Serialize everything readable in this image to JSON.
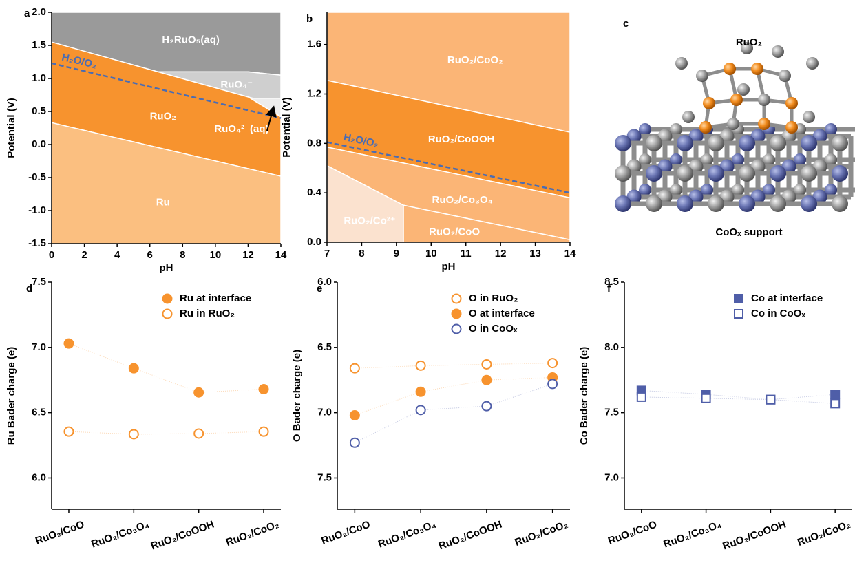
{
  "chart_data": [
    {
      "type": "pourbaix",
      "label": "a",
      "xlabel": "pH",
      "ylabel": "Potential (V)",
      "xlim": [
        0,
        14
      ],
      "ylim": [
        -1.5,
        2.0
      ],
      "xticks": [
        0,
        2,
        4,
        6,
        8,
        10,
        12,
        14
      ],
      "yticks": [
        -1.5,
        {
          "value": -1,
          "label": "-1.0"
        },
        -0.5,
        {
          "value": 0,
          "label": "0.0"
        },
        0.5,
        {
          "value": 1,
          "label": "1.0"
        },
        1.5,
        {
          "value": 2,
          "label": "2.0"
        }
      ],
      "regions": [
        {
          "name": "H₂RuO₅(aq)",
          "color": "#9a9a9a",
          "points": [
            [
              0,
              2.0
            ],
            [
              14,
              2.0
            ],
            [
              14,
              1.05
            ],
            [
              12,
              1.1
            ],
            [
              6.5,
              1.1
            ],
            [
              0,
              1.55
            ]
          ]
        },
        {
          "name": "RuO₄⁻",
          "color": "#cfcfcf",
          "points": [
            [
              6.5,
              1.1
            ],
            [
              12,
              1.1
            ],
            [
              14,
              1.05
            ],
            [
              14,
              0.7
            ],
            [
              12.3,
              0.7
            ]
          ]
        },
        {
          "name": "RuO₄²⁻(aq)",
          "color": "#ededed",
          "points": [
            [
              12.3,
              0.7
            ],
            [
              14,
              0.7
            ],
            [
              14,
              0.42
            ],
            [
              12,
              0.72
            ]
          ]
        },
        {
          "name": "RuO₂",
          "color": "#f7932e",
          "points": [
            [
              0,
              0.33
            ],
            [
              14,
              -0.48
            ],
            [
              14,
              0.42
            ],
            [
              12,
              0.72
            ],
            [
              6.5,
              1.1
            ],
            [
              0,
              1.55
            ]
          ]
        },
        {
          "name": "Ru",
          "color": "#fbbf80",
          "points": [
            [
              0,
              -1.5
            ],
            [
              14,
              -1.5
            ],
            [
              14,
              -0.48
            ],
            [
              0,
              0.33
            ]
          ]
        }
      ],
      "reference_line": {
        "name": "H₂O/O₂",
        "color": "#4a6cb3",
        "points": [
          [
            0,
            1.23
          ],
          [
            14,
            0.4
          ]
        ]
      }
    },
    {
      "type": "pourbaix",
      "label": "b",
      "xlabel": "pH",
      "ylabel": "Potential (V)",
      "xlim": [
        7,
        14
      ],
      "ylim": [
        0,
        1.86
      ],
      "xticks": [
        7,
        8,
        9,
        10,
        11,
        12,
        13,
        14
      ],
      "yticks": [
        {
          "value": 0,
          "label": "0.0"
        },
        0.4,
        0.8,
        1.2,
        1.6
      ],
      "regions": [
        {
          "name": "RuO₂/CoO₂",
          "color": "#fbb576",
          "points": [
            [
              7,
              1.86
            ],
            [
              14,
              1.86
            ],
            [
              14,
              0.89
            ],
            [
              7,
              1.31
            ]
          ]
        },
        {
          "name": "RuO₂/CoOOH",
          "color": "#f7932e",
          "points": [
            [
              7,
              1.31
            ],
            [
              14,
              0.89
            ],
            [
              14,
              0.36
            ],
            [
              7,
              0.77
            ]
          ]
        },
        {
          "name": "RuO₂/Co₃O₄",
          "color": "#fbb576",
          "points": [
            [
              7,
              0.77
            ],
            [
              14,
              0.36
            ],
            [
              14,
              0.02
            ],
            [
              9.2,
              0.3
            ],
            [
              7,
              0.62
            ]
          ]
        },
        {
          "name": "RuO₂/CoO",
          "color": "#fbb576",
          "points": [
            [
              9.2,
              0
            ],
            [
              14,
              0
            ],
            [
              14,
              0.02
            ],
            [
              9.2,
              0.3
            ]
          ]
        },
        {
          "name": "RuO₂/Co²⁺",
          "color": "#fbe2cf",
          "points": [
            [
              7,
              0
            ],
            [
              9.2,
              0
            ],
            [
              9.2,
              0.3
            ],
            [
              7,
              0.62
            ]
          ]
        }
      ],
      "reference_line": {
        "name": "H₂O/O₂",
        "color": "#4a6cb3",
        "points": [
          [
            7,
            0.81
          ],
          [
            14,
            0.4
          ]
        ]
      }
    },
    {
      "type": "line",
      "label": "d",
      "ylabel": "Ru Bader charge (e)",
      "categories": [
        "RuO₂/CoO",
        "RuO₂/Co₃O₄",
        "RuO₂/CoOOH",
        "RuO₂/CoO₂"
      ],
      "ylim": [
        5.76,
        7.5
      ],
      "yticks": [
        {
          "value": 6,
          "label": "6.0"
        },
        6.5,
        {
          "value": 7,
          "label": "7.0"
        },
        7.5
      ],
      "series": [
        {
          "name": "Ru at interface",
          "color": "#f7932e",
          "marker": "circle",
          "filled": true,
          "values": [
            7.03,
            6.84,
            6.655,
            6.68
          ]
        },
        {
          "name": "Ru in RuO₂",
          "color": "#f7932e",
          "marker": "circle",
          "filled": false,
          "values": [
            6.355,
            6.335,
            6.34,
            6.355
          ]
        }
      ]
    },
    {
      "type": "line",
      "label": "e",
      "ylabel": "O Bader charge (e)",
      "categories": [
        "RuO₂/CoO",
        "RuO₂/Co₃O₄",
        "RuO₂/CoOOH",
        "RuO₂/CoO₂"
      ],
      "ylim": [
        7.74,
        6.0
      ],
      "yticks": [
        {
          "value": 6,
          "label": "6.0"
        },
        6.5,
        {
          "value": 7,
          "label": "7.0"
        },
        7.5
      ],
      "series": [
        {
          "name": "O in RuO₂",
          "color": "#f7932e",
          "marker": "circle",
          "filled": false,
          "values": [
            6.66,
            6.64,
            6.63,
            6.62
          ]
        },
        {
          "name": "O at interface",
          "color": "#f7932e",
          "marker": "circle",
          "filled": true,
          "values": [
            7.02,
            6.84,
            6.75,
            6.73
          ]
        },
        {
          "name": "O in CoOₓ",
          "color": "#4f5ea8",
          "marker": "circle",
          "filled": false,
          "values": [
            7.23,
            6.98,
            6.95,
            6.78
          ]
        }
      ]
    },
    {
      "type": "line",
      "label": "f",
      "ylabel": "Co Bader charge (e)",
      "categories": [
        "RuO₂/CoO",
        "RuO₂/Co₃O₄",
        "RuO₂/CoOOH",
        "RuO₂/CoO₂"
      ],
      "ylim": [
        6.76,
        8.5
      ],
      "yticks": [
        {
          "value": 7,
          "label": "7.0"
        },
        7.5,
        {
          "value": 8,
          "label": "8.0"
        },
        8.5
      ],
      "series": [
        {
          "name": "Co at interface",
          "color": "#4f5ea8",
          "marker": "square",
          "filled": true,
          "values": [
            7.67,
            7.64,
            7.6,
            7.64
          ]
        },
        {
          "name": "Co in CoOₓ",
          "color": "#4f5ea8",
          "marker": "square",
          "filled": false,
          "values": [
            7.62,
            7.61,
            7.6,
            7.57
          ]
        }
      ]
    }
  ],
  "structure": {
    "label": "c",
    "top": "RuO₂",
    "bottom": "CoOₓ support"
  }
}
